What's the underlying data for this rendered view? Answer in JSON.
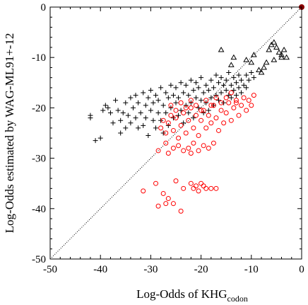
{
  "chart_data": {
    "type": "scatter",
    "title": "",
    "xlabel": "Log-Odds of KHG",
    "xlabel_subscript": "codon",
    "ylabel": "Log-Odds estimated by WAG-ML91+-12",
    "xlim": [
      -50,
      0
    ],
    "ylim": [
      -50,
      0
    ],
    "x_ticks": [
      -50,
      -40,
      -30,
      -20,
      -10,
      0
    ],
    "y_ticks": [
      0,
      -10,
      -20,
      -30,
      -40,
      -50
    ],
    "x_tick_labels": [
      "-50",
      "-40",
      "-30",
      "-20",
      "-10",
      "0"
    ],
    "y_tick_labels": [
      "0",
      "-10",
      "-20",
      "-30",
      "-40",
      "-50"
    ],
    "grid": false,
    "legend": "none",
    "reference_line": {
      "style": "dotted",
      "from": [
        -50,
        -50
      ],
      "to": [
        0,
        0
      ],
      "color": "#000000"
    },
    "series": [
      {
        "marker": "plus",
        "color": "#000000",
        "points": [
          [
            -42,
            -21.5
          ],
          [
            -42,
            -22
          ],
          [
            -41,
            -26.5
          ],
          [
            -40,
            -26
          ],
          [
            -39.5,
            -20.5
          ],
          [
            -39,
            -19.5
          ],
          [
            -38.5,
            -20
          ],
          [
            -38,
            -21
          ],
          [
            -37.5,
            -23
          ],
          [
            -37,
            -18.5
          ],
          [
            -36.5,
            -20.5
          ],
          [
            -36,
            -22.5
          ],
          [
            -36,
            -25
          ],
          [
            -35.5,
            -21
          ],
          [
            -35,
            -19
          ],
          [
            -35,
            -24
          ],
          [
            -34.5,
            -21.5
          ],
          [
            -34,
            -18
          ],
          [
            -34,
            -23
          ],
          [
            -33.5,
            -20
          ],
          [
            -33,
            -17.5
          ],
          [
            -33,
            -22
          ],
          [
            -32.5,
            -24
          ],
          [
            -32.5,
            -19
          ],
          [
            -32,
            -21
          ],
          [
            -31.5,
            -17
          ],
          [
            -31.5,
            -23.5
          ],
          [
            -31,
            -19.5
          ],
          [
            -31,
            -22
          ],
          [
            -30.5,
            -18
          ],
          [
            -30.5,
            -25.5
          ],
          [
            -30,
            -20.5
          ],
          [
            -30,
            -16.5
          ],
          [
            -29.5,
            -22.5
          ],
          [
            -29.5,
            -19
          ],
          [
            -29,
            -17.5
          ],
          [
            -29,
            -24
          ],
          [
            -28.5,
            -21
          ],
          [
            -28.5,
            -18.5
          ],
          [
            -28,
            -16
          ],
          [
            -28,
            -22.5
          ],
          [
            -27.5,
            -19.5
          ],
          [
            -27.5,
            -25
          ],
          [
            -27,
            -17
          ],
          [
            -27,
            -21
          ],
          [
            -26.5,
            -18
          ],
          [
            -26.5,
            -23.5
          ],
          [
            -26,
            -15.5
          ],
          [
            -26,
            -20
          ],
          [
            -25.5,
            -17.5
          ],
          [
            -25.5,
            -22
          ],
          [
            -25,
            -19
          ],
          [
            -25,
            -16
          ],
          [
            -24.5,
            -21.5
          ],
          [
            -24.5,
            -18
          ],
          [
            -24,
            -15
          ],
          [
            -24,
            -20.5
          ],
          [
            -23.5,
            -17
          ],
          [
            -23.5,
            -23
          ],
          [
            -23,
            -19.5
          ],
          [
            -23,
            -15.5
          ],
          [
            -22.5,
            -21
          ],
          [
            -22.5,
            -17.5
          ],
          [
            -22,
            -14.5
          ],
          [
            -22,
            -19
          ],
          [
            -21.5,
            -16.5
          ],
          [
            -21.5,
            -22
          ],
          [
            -21,
            -18
          ],
          [
            -21,
            -15
          ],
          [
            -20.5,
            -20
          ],
          [
            -20.5,
            -16
          ],
          [
            -20,
            -14
          ],
          [
            -20,
            -18.5
          ],
          [
            -19.5,
            -17
          ],
          [
            -19.5,
            -21
          ],
          [
            -19,
            -15.5
          ],
          [
            -19,
            -19
          ],
          [
            -18.5,
            -16.5
          ],
          [
            -18.5,
            -20.5
          ],
          [
            -18,
            -14.5
          ],
          [
            -18,
            -18
          ],
          [
            -17.5,
            -16
          ],
          [
            -17.5,
            -19.5
          ],
          [
            -17,
            -13.5
          ],
          [
            -17,
            -17.5
          ],
          [
            -16.5,
            -15
          ],
          [
            -16.5,
            -18.5
          ],
          [
            -16,
            -14
          ],
          [
            -16,
            -17
          ],
          [
            -15.5,
            -15.5
          ],
          [
            -15.5,
            -19
          ],
          [
            -15,
            -14.5
          ],
          [
            -15,
            -16.5
          ],
          [
            -14.5,
            -13
          ],
          [
            -14.5,
            -17.5
          ],
          [
            -14,
            -15.5
          ],
          [
            -14,
            -18
          ],
          [
            -13.5,
            -14
          ],
          [
            -13.5,
            -16.5
          ],
          [
            -13,
            -15
          ],
          [
            -13,
            -17.5
          ],
          [
            -12.5,
            -13.5
          ],
          [
            -12.5,
            -16
          ],
          [
            -12,
            -14.5
          ],
          [
            -12,
            -17
          ],
          [
            -11.5,
            -15.5
          ],
          [
            -11,
            -13.5
          ],
          [
            -11,
            -16
          ],
          [
            -10.5,
            -14.5
          ],
          [
            -10,
            -13
          ],
          [
            -9.5,
            -14
          ]
        ]
      },
      {
        "marker": "circle",
        "color": "#ff0000",
        "points": [
          [
            -31.5,
            -36.5
          ],
          [
            -29,
            -35
          ],
          [
            -28.5,
            -39.5
          ],
          [
            -27.5,
            -37
          ],
          [
            -27,
            -39
          ],
          [
            -26.5,
            -38
          ],
          [
            -25.5,
            -39
          ],
          [
            -25,
            -34.5
          ],
          [
            -24,
            -40.5
          ],
          [
            -23.5,
            -36
          ],
          [
            -22,
            -35
          ],
          [
            -21.5,
            -36
          ],
          [
            -21,
            -35.5
          ],
          [
            -20.5,
            -36.5
          ],
          [
            -20,
            -35
          ],
          [
            -19.5,
            -35.5
          ],
          [
            -19,
            -36
          ],
          [
            -18,
            -36
          ],
          [
            -17,
            -36
          ],
          [
            -28.5,
            -28.5
          ],
          [
            -27,
            -27
          ],
          [
            -26.5,
            -29
          ],
          [
            -25.5,
            -28
          ],
          [
            -24.5,
            -27.5
          ],
          [
            -23.5,
            -28.5
          ],
          [
            -22.5,
            -28
          ],
          [
            -22,
            -29
          ],
          [
            -21.5,
            -27
          ],
          [
            -20.5,
            -28.5
          ],
          [
            -19.5,
            -27.5
          ],
          [
            -18.5,
            -28
          ],
          [
            -17.5,
            -27
          ],
          [
            -28,
            -24
          ],
          [
            -27.5,
            -22.5
          ],
          [
            -27,
            -25
          ],
          [
            -26.5,
            -23
          ],
          [
            -26,
            -21.5
          ],
          [
            -25.5,
            -24.5
          ],
          [
            -25,
            -22
          ],
          [
            -24.5,
            -26
          ],
          [
            -24,
            -23.5
          ],
          [
            -23.5,
            -21
          ],
          [
            -23,
            -25
          ],
          [
            -22.5,
            -22.5
          ],
          [
            -22,
            -20
          ],
          [
            -21.5,
            -24
          ],
          [
            -21,
            -21.5
          ],
          [
            -20.5,
            -25.5
          ],
          [
            -20,
            -22.5
          ],
          [
            -19.5,
            -20.5
          ],
          [
            -19,
            -24
          ],
          [
            -18.5,
            -21.5
          ],
          [
            -18,
            -23
          ],
          [
            -17.5,
            -19.5
          ],
          [
            -17,
            -22
          ],
          [
            -16.5,
            -24.5
          ],
          [
            -16,
            -20.5
          ],
          [
            -15.5,
            -23
          ],
          [
            -15,
            -21
          ],
          [
            -14.5,
            -19
          ],
          [
            -14,
            -22.5
          ],
          [
            -13.5,
            -20
          ],
          [
            -13,
            -18.5
          ],
          [
            -12.5,
            -21.5
          ],
          [
            -12,
            -19.5
          ],
          [
            -11.5,
            -18
          ],
          [
            -11,
            -20.5
          ],
          [
            -10.5,
            -18.5
          ],
          [
            -10,
            -19.5
          ],
          [
            -9.5,
            -17.5
          ],
          [
            -26,
            -19.5
          ],
          [
            -25,
            -20.5
          ],
          [
            -24,
            -19
          ],
          [
            -23,
            -20
          ],
          [
            -22,
            -18.5
          ],
          [
            -21,
            -19.5
          ],
          [
            -20,
            -20.5
          ],
          [
            -19,
            -18.5
          ],
          [
            -18,
            -19.5
          ],
          [
            -17,
            -18
          ],
          [
            -16,
            -19
          ],
          [
            -15,
            -18
          ],
          [
            -14,
            -17
          ],
          [
            -13,
            -19
          ]
        ]
      },
      {
        "marker": "triangle",
        "color": "#000000",
        "points": [
          [
            -16,
            -8.5
          ],
          [
            -14,
            -11.5
          ],
          [
            -13.5,
            -10
          ],
          [
            -11,
            -10.5
          ],
          [
            -10,
            -11
          ],
          [
            -9.5,
            -9.5
          ],
          [
            -8.5,
            -12.5
          ],
          [
            -8,
            -13
          ],
          [
            -7,
            -11
          ],
          [
            -6.5,
            -8.5
          ],
          [
            -6,
            -7.5
          ],
          [
            -5.5,
            -7
          ],
          [
            -5,
            -8
          ],
          [
            -4.5,
            -9
          ],
          [
            -4,
            -10
          ],
          [
            -4,
            -9.5
          ],
          [
            -3.5,
            -8.5
          ],
          [
            -3,
            -10
          ],
          [
            -5.5,
            -10.5
          ],
          [
            -7.5,
            -12
          ]
        ]
      },
      {
        "marker": "filled-circle",
        "color": "#8b0000",
        "points": [
          [
            0,
            0
          ]
        ]
      }
    ]
  }
}
